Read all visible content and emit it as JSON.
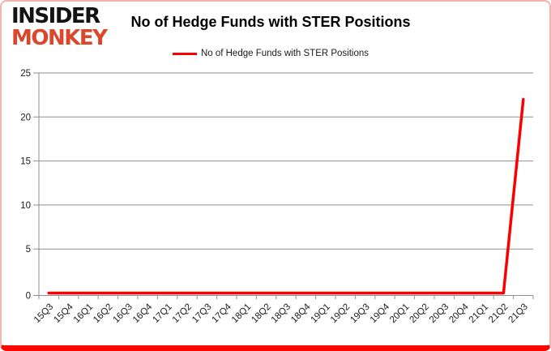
{
  "logo": {
    "line1": "INSIDER",
    "line2": "MONKEY"
  },
  "header": {
    "title": "No of Hedge Funds with STER Positions"
  },
  "legend": {
    "label": "No of Hedge Funds with STER Positions",
    "color": "#fb0000"
  },
  "colors": {
    "series_red": "#fb0000",
    "logo_red": "#d9472d",
    "grid_gray": "#8f8f8f",
    "axis_gray": "#8f8f8f",
    "border_pink": "#f1b5af",
    "border_bottom_red": "#fb0603",
    "text_black": "#1a1a1a"
  },
  "chart_data": {
    "type": "line",
    "title": "No of Hedge Funds with STER Positions",
    "categories": [
      "15Q3",
      "15Q4",
      "16Q1",
      "16Q2",
      "16Q3",
      "16Q4",
      "17Q1",
      "17Q2",
      "17Q3",
      "17Q4",
      "18Q1",
      "18Q2",
      "18Q3",
      "18Q4",
      "19Q1",
      "19Q2",
      "19Q3",
      "19Q4",
      "20Q1",
      "20Q2",
      "20Q3",
      "20Q4",
      "21Q1",
      "21Q2",
      "21Q3"
    ],
    "series": [
      {
        "name": "No of Hedge Funds with STER Positions",
        "color": "#fb0000",
        "values": [
          0,
          0,
          0,
          0,
          0,
          0,
          0,
          0,
          0,
          0,
          0,
          0,
          0,
          0,
          0,
          0,
          0,
          0,
          0,
          0,
          0,
          0,
          0,
          0,
          22
        ]
      }
    ],
    "xlabel": "",
    "ylabel": "",
    "ylim": [
      0,
      25
    ],
    "yticks": [
      0,
      5,
      10,
      15,
      20,
      25
    ],
    "grid": "horizontal",
    "legend_position": "top"
  }
}
